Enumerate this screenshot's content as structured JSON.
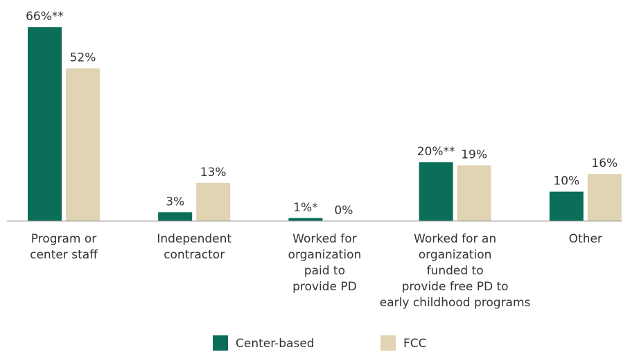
{
  "chart_data": {
    "type": "bar",
    "categories": [
      [
        "Program or",
        "center staff"
      ],
      [
        "Independent",
        "contractor"
      ],
      [
        "Worked for",
        "organization",
        "paid to",
        "provide PD"
      ],
      [
        "Worked for an",
        "organization",
        "funded to",
        "provide free PD to",
        "early childhood programs"
      ],
      [
        "Other"
      ]
    ],
    "series": [
      {
        "name": "Center-based",
        "color": "#0b6e58",
        "values": [
          66,
          3,
          1,
          20,
          10
        ],
        "value_labels": [
          "66%**",
          "3%",
          "1%*",
          "20%**",
          "10%"
        ]
      },
      {
        "name": "FCC",
        "color": "#e0d4b2",
        "values": [
          52,
          13,
          0,
          19,
          16
        ],
        "value_labels": [
          "52%",
          "13%",
          "0%",
          "19%",
          "16%"
        ]
      }
    ]
  }
}
